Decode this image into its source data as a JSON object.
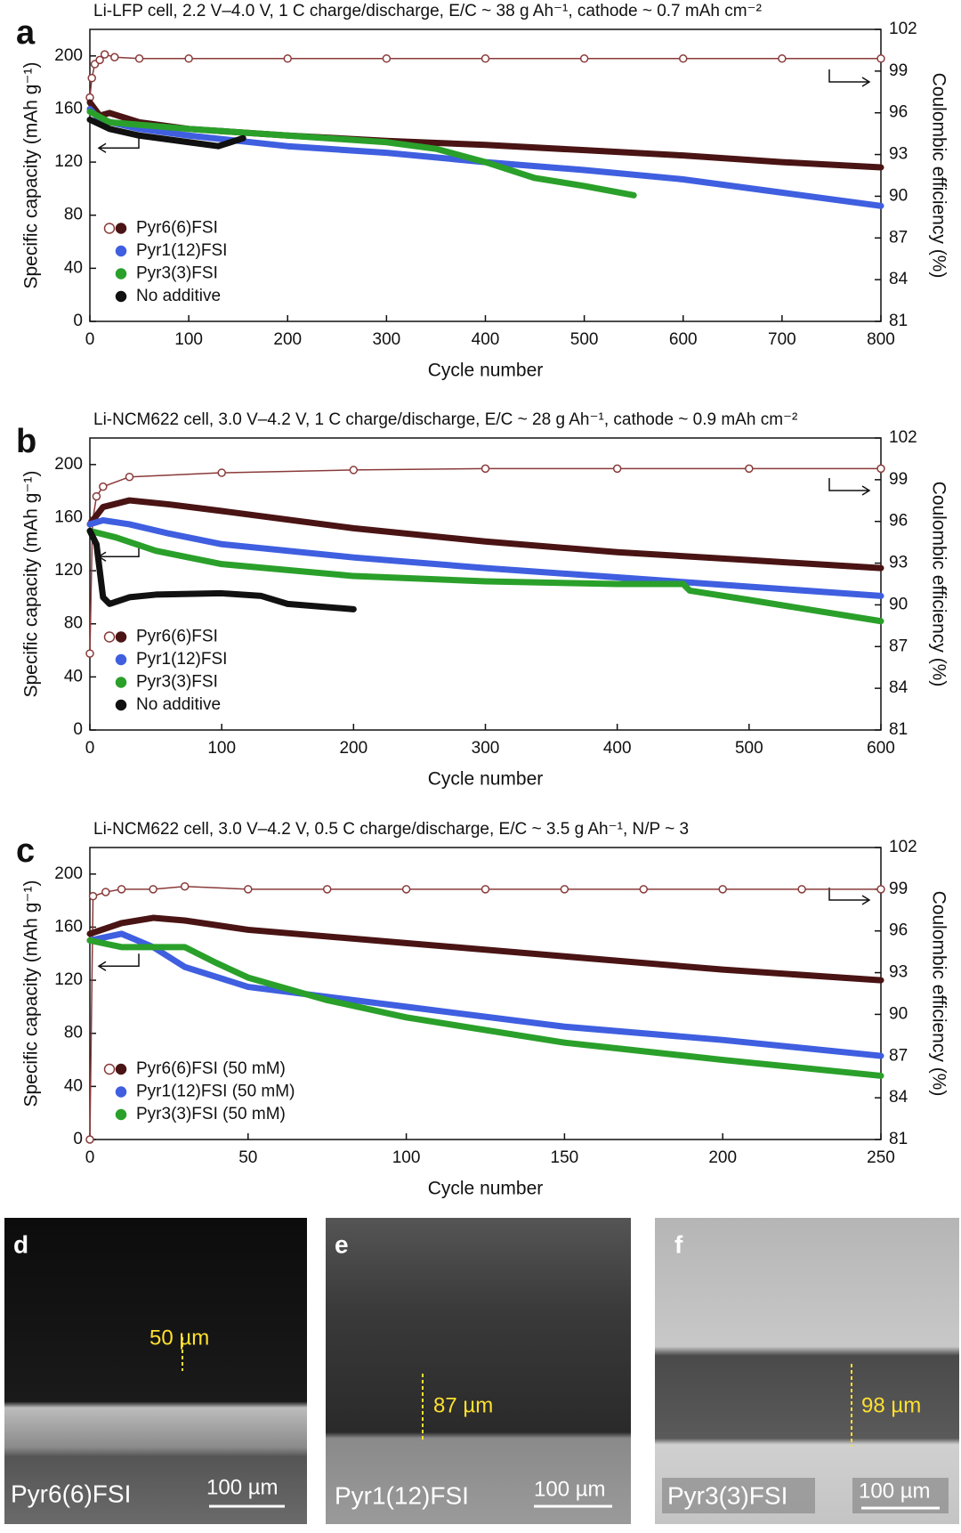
{
  "chart_data": [
    {
      "type": "line",
      "panel_label": "a",
      "title": "Li-LFP cell, 2.2 V–4.0 V, 1 C charge/discharge, E/C ~ 38 g Ah⁻¹, cathode ~ 0.7 mAh cm⁻²",
      "x_label": "Cycle number",
      "y_label": "Specific capacity (mAh g⁻¹)",
      "y2_label": "Coulombic efficiency  (%)",
      "xlim": [
        0,
        800
      ],
      "xticks": [
        0,
        100,
        200,
        300,
        400,
        500,
        600,
        700,
        800
      ],
      "ylim": [
        0,
        220
      ],
      "yticks": [
        0,
        40,
        80,
        120,
        160,
        200
      ],
      "y2lim": [
        81,
        102
      ],
      "y2ticks": [
        81,
        84,
        87,
        90,
        93,
        96,
        99,
        102
      ],
      "legend_position": "lower left",
      "series": [
        {
          "name": "Pyr6(6)FSI",
          "color": "#8a3a3a",
          "marker": "open",
          "axis": "y2",
          "x": [
            0,
            2,
            5,
            10,
            15,
            25,
            50,
            100,
            200,
            300,
            400,
            500,
            600,
            700,
            800
          ],
          "values": [
            97.1,
            98.5,
            99.5,
            99.8,
            100.2,
            100,
            99.9,
            99.9,
            99.9,
            99.9,
            99.9,
            99.9,
            99.9,
            99.9,
            99.9
          ]
        },
        {
          "name": "Pyr6(6)FSI",
          "color": "#4a1414",
          "marker": "filled",
          "x": [
            0,
            10,
            20,
            50,
            100,
            200,
            300,
            400,
            500,
            600,
            700,
            800
          ],
          "values": [
            165,
            155,
            157,
            150,
            145,
            140,
            136,
            133,
            129,
            125,
            120,
            116
          ]
        },
        {
          "name": "Pyr1(12)FSI",
          "color": "#3f5fe0",
          "marker": "filled",
          "x": [
            0,
            10,
            50,
            100,
            200,
            300,
            400,
            500,
            600,
            700,
            800
          ],
          "values": [
            160,
            152,
            145,
            140,
            132,
            127,
            120,
            114,
            107,
            97,
            87
          ]
        },
        {
          "name": "Pyr3(3)FSI",
          "color": "#2aa02a",
          "marker": "filled",
          "x": [
            0,
            20,
            100,
            200,
            300,
            350,
            400,
            450,
            500,
            550
          ],
          "values": [
            158,
            150,
            145,
            140,
            135,
            130,
            120,
            108,
            102,
            95
          ]
        },
        {
          "name": "No additive",
          "color": "#111111",
          "marker": "filled",
          "x": [
            0,
            20,
            50,
            100,
            130,
            155
          ],
          "values": [
            152,
            145,
            140,
            135,
            132,
            138
          ]
        }
      ]
    },
    {
      "type": "line",
      "panel_label": "b",
      "title": "Li-NCM622 cell, 3.0 V–4.2 V, 1 C charge/discharge, E/C ~ 28 g Ah⁻¹, cathode ~ 0.9 mAh cm⁻²",
      "x_label": "Cycle number",
      "y_label": "Specific capacity (mAh g⁻¹)",
      "y2_label": "Coulombic efficiency  (%)",
      "xlim": [
        0,
        600
      ],
      "xticks": [
        0,
        100,
        200,
        300,
        400,
        500,
        600
      ],
      "ylim": [
        0,
        220
      ],
      "yticks": [
        0,
        40,
        80,
        120,
        160,
        200
      ],
      "y2lim": [
        81,
        102
      ],
      "y2ticks": [
        81,
        84,
        87,
        90,
        93,
        96,
        99,
        102
      ],
      "legend_position": "lower left",
      "series": [
        {
          "name": "Pyr6(6)FSI",
          "color": "#8a3a3a",
          "marker": "open",
          "axis": "y2",
          "x": [
            0,
            2,
            5,
            10,
            30,
            100,
            200,
            300,
            400,
            500,
            600
          ],
          "values": [
            86.5,
            96,
            97.8,
            98.5,
            99.2,
            99.5,
            99.7,
            99.8,
            99.8,
            99.8,
            99.8
          ]
        },
        {
          "name": "Pyr6(6)FSI",
          "color": "#4a1414",
          "marker": "filled",
          "x": [
            0,
            10,
            30,
            60,
            100,
            200,
            300,
            400,
            500,
            600
          ],
          "values": [
            155,
            168,
            173,
            170,
            165,
            152,
            142,
            134,
            128,
            122
          ]
        },
        {
          "name": "Pyr1(12)FSI",
          "color": "#3f5fe0",
          "marker": "filled",
          "x": [
            0,
            10,
            30,
            60,
            100,
            200,
            300,
            400,
            500,
            600
          ],
          "values": [
            155,
            158,
            155,
            148,
            140,
            130,
            122,
            115,
            108,
            101
          ]
        },
        {
          "name": "Pyr3(3)FSI",
          "color": "#2aa02a",
          "marker": "filled",
          "x": [
            0,
            20,
            50,
            100,
            200,
            300,
            400,
            450,
            455,
            500,
            600
          ],
          "values": [
            150,
            145,
            135,
            125,
            116,
            112,
            110,
            110,
            105,
            98,
            82
          ]
        },
        {
          "name": "No additive",
          "color": "#111111",
          "marker": "filled",
          "x": [
            0,
            5,
            10,
            15,
            30,
            50,
            100,
            130,
            150,
            200
          ],
          "values": [
            150,
            140,
            100,
            95,
            100,
            102,
            103,
            101,
            95,
            91
          ]
        }
      ]
    },
    {
      "type": "line",
      "panel_label": "c",
      "title": "Li-NCM622 cell, 3.0 V–4.2 V, 0.5 C charge/discharge, E/C ~ 3.5 g Ah⁻¹, N/P ~ 3",
      "x_label": "Cycle number",
      "y_label": "Specific capacity (mAh g⁻¹)",
      "y2_label": "Coulombic efficiency  (%)",
      "xlim": [
        0,
        250
      ],
      "xticks": [
        0,
        50,
        100,
        150,
        200,
        250
      ],
      "ylim": [
        0,
        220
      ],
      "yticks": [
        0,
        40,
        80,
        120,
        160,
        200
      ],
      "y2lim": [
        81,
        102
      ],
      "y2ticks": [
        81,
        84,
        87,
        90,
        93,
        96,
        99,
        102
      ],
      "legend_position": "lower left",
      "series": [
        {
          "name": "Pyr6(6)FSI (50 mM)",
          "color": "#8a3a3a",
          "marker": "open",
          "axis": "y2",
          "x": [
            0,
            1,
            5,
            10,
            20,
            30,
            50,
            75,
            100,
            125,
            150,
            175,
            200,
            225,
            250
          ],
          "values": [
            81,
            98.5,
            98.8,
            99,
            99,
            99.2,
            99,
            99,
            99,
            99,
            99,
            99,
            99,
            99,
            99
          ]
        },
        {
          "name": "Pyr6(6)FSI (50 mM)",
          "color": "#4a1414",
          "marker": "filled",
          "x": [
            0,
            10,
            20,
            30,
            50,
            100,
            150,
            200,
            250
          ],
          "values": [
            155,
            163,
            167,
            165,
            158,
            148,
            138,
            128,
            120
          ]
        },
        {
          "name": "Pyr1(12)FSI (50 mM)",
          "color": "#3f5fe0",
          "marker": "filled",
          "x": [
            0,
            10,
            20,
            30,
            50,
            100,
            150,
            200,
            250
          ],
          "values": [
            150,
            155,
            145,
            130,
            115,
            100,
            85,
            75,
            63
          ]
        },
        {
          "name": "Pyr3(3)FSI (50 mM)",
          "color": "#2aa02a",
          "marker": "filled",
          "x": [
            0,
            10,
            30,
            40,
            50,
            75,
            100,
            150,
            200,
            250
          ],
          "values": [
            150,
            145,
            145,
            133,
            122,
            105,
            92,
            73,
            60,
            48
          ]
        }
      ]
    }
  ],
  "images": [
    {
      "letter": "d",
      "thickness": "50 µm",
      "label": "Pyr6(6)FSI",
      "scale": "100 µm"
    },
    {
      "letter": "e",
      "thickness": "87 µm",
      "label": "Pyr1(12)FSI",
      "scale": "100 µm"
    },
    {
      "letter": "f",
      "thickness": "98 µm",
      "label": "Pyr3(3)FSI",
      "scale": "100 µm"
    }
  ]
}
